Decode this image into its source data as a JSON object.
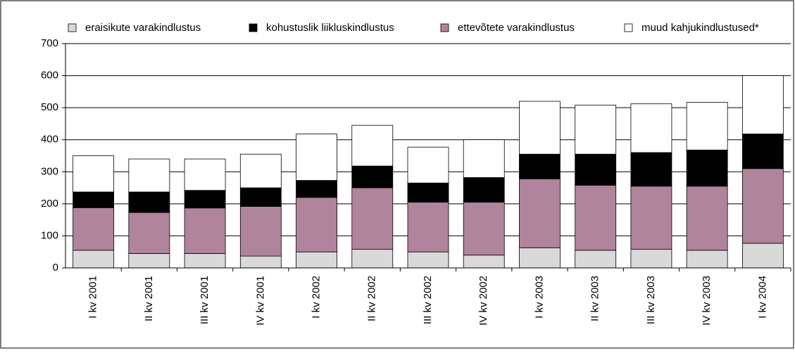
{
  "chart_data": {
    "type": "stacked_bar",
    "categories": [
      "I kv 2001",
      "II kv 2001",
      "III kv 2001",
      "IV kv 2001",
      "I kv 2002",
      "II kv 2002",
      "III kv 2002",
      "IV kv 2002",
      "I kv 2003",
      "II kv 2003",
      "III kv 2003",
      "IV kv 2003",
      "I kv 2004"
    ],
    "series": [
      {
        "name": "eraisikute varakindlustus",
        "color": "#d9d9d9",
        "values": [
          55,
          45,
          45,
          37,
          50,
          58,
          50,
          40,
          63,
          55,
          58,
          55,
          77
        ]
      },
      {
        "name": "kohustuslik liikluskindlustus",
        "color": "#000000",
        "values": [
          49,
          64,
          55,
          58,
          53,
          68,
          60,
          77,
          77,
          97,
          105,
          113,
          108
        ]
      },
      {
        "name": "ettevõtete varakindlustus",
        "color": "#b0849a",
        "values": [
          133,
          128,
          142,
          155,
          170,
          192,
          155,
          165,
          215,
          203,
          197,
          200,
          233
        ]
      },
      {
        "name": "muud kahjukindlustused*",
        "color": "#ffffff",
        "values": [
          113,
          103,
          98,
          105,
          145,
          127,
          112,
          118,
          165,
          153,
          152,
          149,
          182
        ]
      }
    ],
    "stack_order": [
      0,
      2,
      1,
      3
    ],
    "ylim": [
      0,
      700
    ],
    "yticks": [
      0,
      100,
      200,
      300,
      400,
      500,
      600,
      700
    ],
    "grid": true
  }
}
